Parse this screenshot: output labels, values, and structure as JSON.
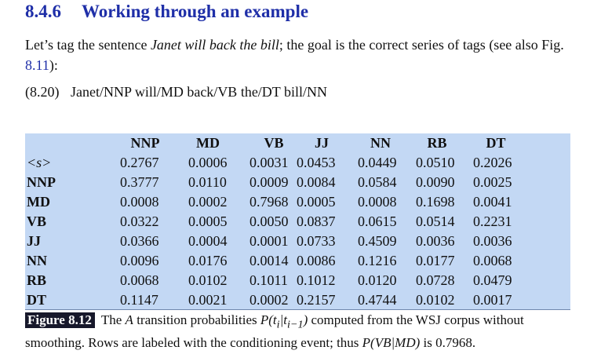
{
  "section": {
    "number": "8.4.6",
    "title": "Working through an example"
  },
  "intro": {
    "lead": "Let’s tag the sentence",
    "sentence": "Janet will back the bill",
    "middle": "; the goal is the correct series of tags (see also Fig.",
    "figref": "8.11",
    "tail": "):"
  },
  "example": {
    "number": "(8.20)",
    "text": "Janet/NNP will/MD back/VB the/DT bill/NN"
  },
  "table": {
    "columns": [
      "NNP",
      "MD",
      "VB",
      "JJ",
      "NN",
      "RB",
      "DT"
    ],
    "rows": [
      {
        "label": "<s>",
        "values": [
          "0.2767",
          "0.0006",
          "0.0031",
          "0.0453",
          "0.0449",
          "0.0510",
          "0.2026"
        ]
      },
      {
        "label": "NNP",
        "values": [
          "0.3777",
          "0.0110",
          "0.0009",
          "0.0084",
          "0.0584",
          "0.0090",
          "0.0025"
        ]
      },
      {
        "label": "MD",
        "values": [
          "0.0008",
          "0.0002",
          "0.7968",
          "0.0005",
          "0.0008",
          "0.1698",
          "0.0041"
        ]
      },
      {
        "label": "VB",
        "values": [
          "0.0322",
          "0.0005",
          "0.0050",
          "0.0837",
          "0.0615",
          "0.0514",
          "0.2231"
        ]
      },
      {
        "label": "JJ",
        "values": [
          "0.0366",
          "0.0004",
          "0.0001",
          "0.0733",
          "0.4509",
          "0.0036",
          "0.0036"
        ]
      },
      {
        "label": "NN",
        "values": [
          "0.0096",
          "0.0176",
          "0.0014",
          "0.0086",
          "0.1216",
          "0.0177",
          "0.0068"
        ]
      },
      {
        "label": "RB",
        "values": [
          "0.0068",
          "0.0102",
          "0.1011",
          "0.1012",
          "0.0120",
          "0.0728",
          "0.0479"
        ]
      },
      {
        "label": "DT",
        "values": [
          "0.1147",
          "0.0021",
          "0.0002",
          "0.2157",
          "0.4744",
          "0.0102",
          "0.0017"
        ]
      }
    ]
  },
  "caption": {
    "label": "Figure 8.12",
    "t1": "The",
    "A": "A",
    "t2": "transition probabilities",
    "formula1": "P(t",
    "sub1": "i",
    "bar": "|t",
    "sub2": "i−1",
    "close": ")",
    "t3": "computed from the WSJ corpus without smoothing. Rows are labeled with the conditioning event; thus",
    "formula2": "P(VB|MD)",
    "t4": "is 0.7968."
  }
}
